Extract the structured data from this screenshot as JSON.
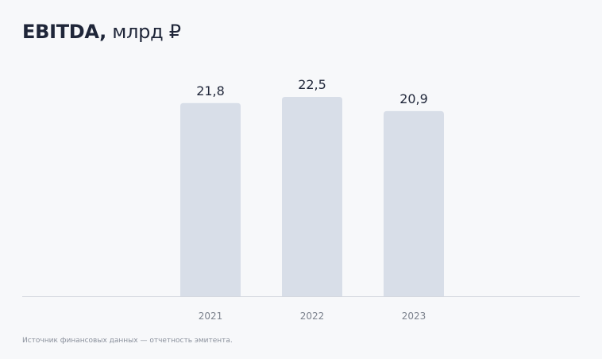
{
  "title": {
    "main": "EBITDA,",
    "unit": "млрд ₽"
  },
  "chart_data": {
    "type": "bar",
    "title": "EBITDA, млрд ₽",
    "categories": [
      "2021",
      "2022",
      "2023"
    ],
    "values": [
      21.8,
      22.5,
      20.9
    ],
    "data_labels": [
      "21,8",
      "22,5",
      "20,9"
    ],
    "xlabel": "",
    "ylabel": "",
    "ylim": [
      0,
      22.5
    ],
    "grid": false,
    "bar_color": "#d8dee8",
    "axis_color": "#d4d8df",
    "label_color": "#1f2639",
    "tick_color": "#7c828d"
  },
  "footnote": "Источник финансовых данных — отчетность эмитента."
}
